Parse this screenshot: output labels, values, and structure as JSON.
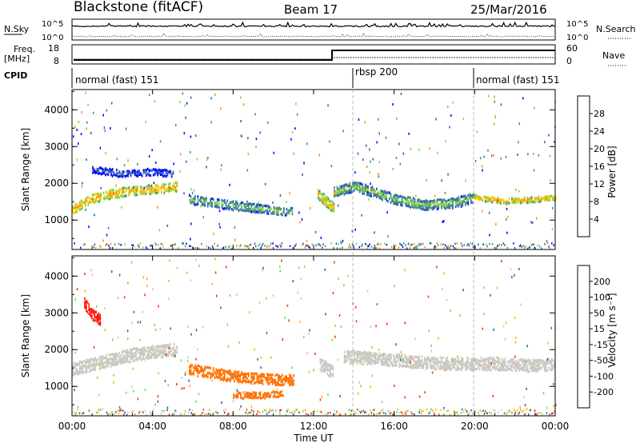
{
  "header": {
    "station": "Blackstone (fitACF)",
    "beam": "Beam 17",
    "date": "25/Mar/2016"
  },
  "noise_panel": {
    "left_label": "N.Sky",
    "right_label": "N.Search",
    "ticks": [
      "10^5",
      "10^0"
    ]
  },
  "freq_panel": {
    "left_label_1": "Freq.",
    "left_label_2": "[MHz]",
    "right_label": "Nave",
    "left_ticks": [
      "18",
      "8"
    ],
    "right_ticks": [
      "60",
      "0"
    ]
  },
  "cpid_panel": {
    "label": "CPID",
    "segments": [
      {
        "label": "normal (fast) 151",
        "start_hour": 0
      },
      {
        "label": "rbsp 200",
        "start_hour": 14
      },
      {
        "label": "normal (fast) 151",
        "start_hour": 20
      }
    ]
  },
  "x_axis": {
    "label": "Time UT",
    "ticks": [
      "00:00",
      "04:00",
      "08:00",
      "12:00",
      "16:00",
      "20:00",
      "00:00"
    ]
  },
  "chart_data": [
    {
      "type": "heatmap",
      "title": "",
      "xlabel": "Time UT",
      "ylabel": "Slant Range [km]",
      "x_range_hours": [
        0,
        24
      ],
      "ylim": [
        200,
        4550
      ],
      "yticks": [
        1000,
        2000,
        3000,
        4000
      ],
      "colorbar": {
        "label": "Power [dB]",
        "ticks": [
          "4",
          "8",
          "12",
          "16",
          "20",
          "24",
          "28"
        ],
        "colors": [
          "#0000ff",
          "#2f5fb0",
          "#3f8f7f",
          "#7fd43f",
          "#f0d000",
          "#ff9000",
          "#ff4000",
          "#ff0000"
        ]
      },
      "bands": [
        {
          "x": [
            0.0,
            0.7,
            1.5,
            2.5,
            3.5,
            4.5,
            5.2
          ],
          "y": [
            1300,
            1550,
            1700,
            1800,
            1850,
            1900,
            1950
          ],
          "width": 250,
          "value": 20
        },
        {
          "x": [
            5.8,
            7.0,
            8.5,
            10.0,
            11.0
          ],
          "y": [
            1600,
            1500,
            1400,
            1300,
            1250
          ],
          "width": 250,
          "value": 12
        },
        {
          "x": [
            12.2,
            12.6,
            13.0
          ],
          "y": [
            1750,
            1550,
            1350
          ],
          "width": 300,
          "value": 18
        },
        {
          "x": [
            13.0,
            14.0,
            15.0,
            16.0,
            17.5,
            19.0,
            20.0
          ],
          "y": [
            1800,
            1950,
            1800,
            1600,
            1450,
            1500,
            1650
          ],
          "width": 280,
          "value": 13
        },
        {
          "x": [
            20.0,
            21.5,
            23.0,
            24.0
          ],
          "y": [
            1650,
            1550,
            1600,
            1650
          ],
          "width": 150,
          "value": 20
        },
        {
          "x": [
            1.0,
            2.5,
            4.0,
            5.0
          ],
          "y": [
            2400,
            2300,
            2350,
            2300
          ],
          "width": 200,
          "value": 6
        }
      ]
    },
    {
      "type": "heatmap",
      "title": "",
      "xlabel": "Time UT",
      "ylabel": "Slant Range [km]",
      "x_range_hours": [
        0,
        24
      ],
      "ylim": [
        200,
        4550
      ],
      "yticks": [
        1000,
        2000,
        3000,
        4000
      ],
      "colorbar": {
        "label": "Velocity [m s⁻¹]",
        "ticks": [
          "200",
          "100",
          "50",
          "15",
          "-15",
          "-50",
          "-100",
          "-200"
        ],
        "colors": [
          "#2030c0",
          "#3060a0",
          "#2e8b57",
          "#7fd43f",
          "#c8c8c0",
          "#ffb000",
          "#ff7000",
          "#ff3000",
          "#ff0000"
        ]
      },
      "bands": [
        {
          "x": [
            0.0,
            1.5,
            3.0,
            4.5,
            5.2
          ],
          "y": [
            1500,
            1700,
            1900,
            2000,
            2050
          ],
          "width": 350,
          "value": 0
        },
        {
          "x": [
            12.3,
            13.0
          ],
          "y": [
            1650,
            1400
          ],
          "width": 350,
          "value": 0
        },
        {
          "x": [
            13.5,
            15.0,
            17.0,
            19.0,
            21.0,
            23.0,
            24.0
          ],
          "y": [
            1850,
            1800,
            1700,
            1650,
            1650,
            1600,
            1650
          ],
          "width": 350,
          "value": 0
        },
        {
          "x": [
            5.8,
            7.5,
            9.0,
            11.0
          ],
          "y": [
            1500,
            1350,
            1250,
            1200
          ],
          "width": 300,
          "value": -60
        },
        {
          "x": [
            0.6,
            1.0,
            1.4
          ],
          "y": [
            3300,
            3000,
            2850
          ],
          "width": 300,
          "value": -200
        },
        {
          "x": [
            8.0,
            9.5,
            10.5
          ],
          "y": [
            800,
            800,
            850
          ],
          "width": 180,
          "value": -60
        }
      ]
    }
  ]
}
